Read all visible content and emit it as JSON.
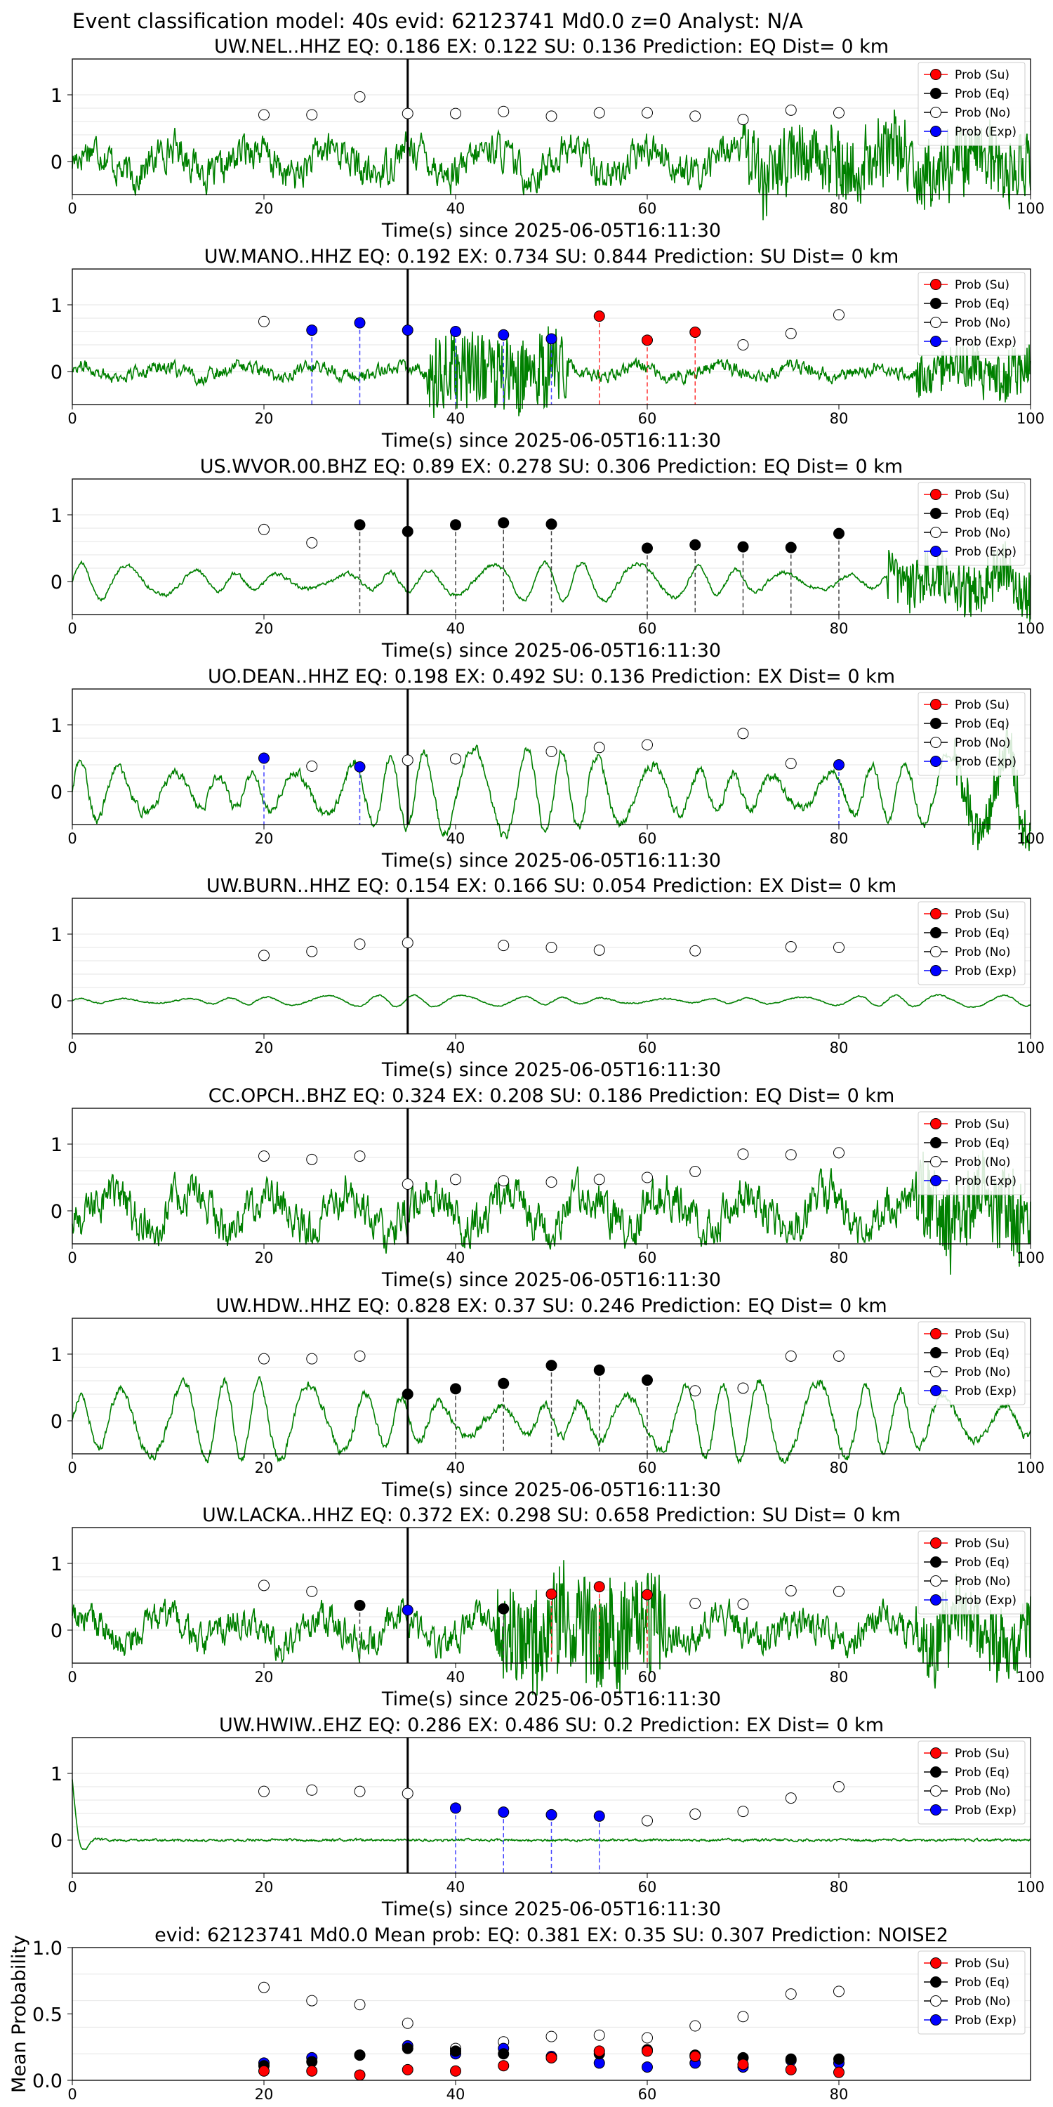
{
  "suptitle": "Event classification model: 40s evid: 62123741 Md0.0 z=0 Analyst: N/A",
  "xlabel": "Time(s) since 2025-06-05T16:11:30",
  "legend": [
    "Prob (Su)",
    "Prob (Eq)",
    "Prob (No)",
    "Prob (Exp)"
  ],
  "colors": {
    "su": "#ff0000",
    "eq": "#000000",
    "no": "#ffffff",
    "exp": "#0000ff",
    "trace": "#008000"
  },
  "chart_data": [
    {
      "type": "line",
      "station": "UW.NEL..HHZ",
      "title": "UW.NEL..HHZ   EQ: 0.186  EX: 0.122  SU: 0.136   Prediction: EQ    Dist= 0 km",
      "xlim": [
        0,
        100
      ],
      "yticks": [
        0,
        1
      ],
      "xticks": [
        0,
        20,
        40,
        60,
        80,
        100
      ],
      "grid": true,
      "vline": 35,
      "legend_position": "top-right",
      "trace": {
        "style": "noise",
        "amplitude": 0.38,
        "freq_hz": 0.9,
        "spiky_after": 70,
        "spiky_amp": 0.45
      },
      "points": [
        {
          "t": 20,
          "p": 0.7,
          "cls": "no"
        },
        {
          "t": 25,
          "p": 0.7,
          "cls": "no"
        },
        {
          "t": 30,
          "p": 0.97,
          "cls": "no"
        },
        {
          "t": 35,
          "p": 0.72,
          "cls": "no"
        },
        {
          "t": 40,
          "p": 0.72,
          "cls": "no"
        },
        {
          "t": 45,
          "p": 0.75,
          "cls": "no"
        },
        {
          "t": 50,
          "p": 0.68,
          "cls": "no"
        },
        {
          "t": 55,
          "p": 0.73,
          "cls": "no"
        },
        {
          "t": 60,
          "p": 0.73,
          "cls": "no"
        },
        {
          "t": 65,
          "p": 0.68,
          "cls": "no"
        },
        {
          "t": 70,
          "p": 0.63,
          "cls": "no"
        },
        {
          "t": 75,
          "p": 0.77,
          "cls": "no"
        },
        {
          "t": 80,
          "p": 0.73,
          "cls": "no"
        }
      ]
    },
    {
      "type": "line",
      "station": "UW.MANO..HHZ",
      "title": "UW.MANO..HHZ   EQ: 0.192  EX: 0.734  SU: 0.844   Prediction: SU    Dist= 0 km",
      "xlim": [
        0,
        100
      ],
      "yticks": [
        0,
        1
      ],
      "xticks": [
        0,
        20,
        40,
        60,
        80,
        100
      ],
      "grid": true,
      "vline": 35,
      "legend_position": "top-right",
      "trace": {
        "style": "burst",
        "amplitude": 0.15,
        "freq_hz": 0.6,
        "burst_start": 37,
        "burst_end": 52,
        "burst_amp": 0.6,
        "spiky_after": 88,
        "spiky_amp": 0.35
      },
      "points": [
        {
          "t": 20,
          "p": 0.75,
          "cls": "no"
        },
        {
          "t": 25,
          "p": 0.62,
          "cls": "exp"
        },
        {
          "t": 30,
          "p": 0.73,
          "cls": "exp"
        },
        {
          "t": 35,
          "p": 0.62,
          "cls": "exp"
        },
        {
          "t": 40,
          "p": 0.6,
          "cls": "exp"
        },
        {
          "t": 45,
          "p": 0.55,
          "cls": "exp"
        },
        {
          "t": 50,
          "p": 0.49,
          "cls": "exp"
        },
        {
          "t": 55,
          "p": 0.83,
          "cls": "su"
        },
        {
          "t": 60,
          "p": 0.47,
          "cls": "su"
        },
        {
          "t": 65,
          "p": 0.59,
          "cls": "su"
        },
        {
          "t": 70,
          "p": 0.4,
          "cls": "no"
        },
        {
          "t": 75,
          "p": 0.57,
          "cls": "no"
        },
        {
          "t": 80,
          "p": 0.85,
          "cls": "no"
        }
      ]
    },
    {
      "type": "line",
      "station": "US.WVOR.00.BHZ",
      "title": "US.WVOR.00.BHZ   EQ: 0.89  EX: 0.278  SU: 0.306   Prediction: EQ    Dist= 0 km",
      "xlim": [
        0,
        100
      ],
      "yticks": [
        0,
        1
      ],
      "xticks": [
        0,
        20,
        40,
        60,
        80,
        100
      ],
      "grid": true,
      "vline": 35,
      "legend_position": "top-right",
      "trace": {
        "style": "wave",
        "amplitude": 0.26,
        "freq_hz": 0.19,
        "spiky_after": 85,
        "spiky_amp": 0.4
      },
      "points": [
        {
          "t": 20,
          "p": 0.78,
          "cls": "no"
        },
        {
          "t": 25,
          "p": 0.58,
          "cls": "no"
        },
        {
          "t": 30,
          "p": 0.85,
          "cls": "eq"
        },
        {
          "t": 35,
          "p": 0.75,
          "cls": "eq"
        },
        {
          "t": 40,
          "p": 0.85,
          "cls": "eq"
        },
        {
          "t": 45,
          "p": 0.88,
          "cls": "eq"
        },
        {
          "t": 50,
          "p": 0.86,
          "cls": "eq"
        },
        {
          "t": 60,
          "p": 0.5,
          "cls": "eq"
        },
        {
          "t": 65,
          "p": 0.55,
          "cls": "eq"
        },
        {
          "t": 70,
          "p": 0.52,
          "cls": "eq"
        },
        {
          "t": 75,
          "p": 0.51,
          "cls": "eq"
        },
        {
          "t": 80,
          "p": 0.72,
          "cls": "eq"
        }
      ]
    },
    {
      "type": "line",
      "station": "UO.DEAN..HHZ",
      "title": "UO.DEAN..HHZ   EQ: 0.198  EX: 0.492  SU: 0.136   Prediction: EX    Dist= 0 km",
      "xlim": [
        0,
        100
      ],
      "yticks": [
        0,
        1
      ],
      "xticks": [
        0,
        20,
        40,
        60,
        80,
        100
      ],
      "grid": true,
      "vline": 35,
      "legend_position": "top-right",
      "trace": {
        "style": "wave",
        "amplitude": 0.6,
        "freq_hz": 0.22,
        "spiky_after": 92,
        "spiky_amp": 0.35
      },
      "points": [
        {
          "t": 20,
          "p": 0.5,
          "cls": "exp"
        },
        {
          "t": 25,
          "p": 0.38,
          "cls": "no"
        },
        {
          "t": 30,
          "p": 0.37,
          "cls": "exp"
        },
        {
          "t": 35,
          "p": 0.47,
          "cls": "no"
        },
        {
          "t": 40,
          "p": 0.49,
          "cls": "no"
        },
        {
          "t": 50,
          "p": 0.6,
          "cls": "no"
        },
        {
          "t": 55,
          "p": 0.66,
          "cls": "no"
        },
        {
          "t": 60,
          "p": 0.7,
          "cls": "no"
        },
        {
          "t": 70,
          "p": 0.87,
          "cls": "no"
        },
        {
          "t": 75,
          "p": 0.42,
          "cls": "no"
        },
        {
          "t": 80,
          "p": 0.4,
          "cls": "exp"
        }
      ]
    },
    {
      "type": "line",
      "station": "UW.BURN..HHZ",
      "title": "UW.BURN..HHZ   EQ: 0.154  EX: 0.166  SU: 0.054   Prediction: EX    Dist= 0 km",
      "xlim": [
        0,
        100
      ],
      "yticks": [
        0,
        1
      ],
      "xticks": [
        0,
        20,
        40,
        60,
        80,
        100
      ],
      "grid": true,
      "vline": 35,
      "legend_position": "top-right",
      "trace": {
        "style": "wave",
        "amplitude": 0.08,
        "freq_hz": 0.2,
        "spiky_after": 101,
        "spiky_amp": 0.0
      },
      "points": [
        {
          "t": 20,
          "p": 0.68,
          "cls": "no"
        },
        {
          "t": 25,
          "p": 0.74,
          "cls": "no"
        },
        {
          "t": 30,
          "p": 0.85,
          "cls": "no"
        },
        {
          "t": 35,
          "p": 0.87,
          "cls": "no"
        },
        {
          "t": 45,
          "p": 0.83,
          "cls": "no"
        },
        {
          "t": 50,
          "p": 0.8,
          "cls": "no"
        },
        {
          "t": 55,
          "p": 0.76,
          "cls": "no"
        },
        {
          "t": 65,
          "p": 0.75,
          "cls": "no"
        },
        {
          "t": 75,
          "p": 0.81,
          "cls": "no"
        },
        {
          "t": 80,
          "p": 0.8,
          "cls": "no"
        }
      ]
    },
    {
      "type": "line",
      "station": "CC.OPCH..BHZ",
      "title": "CC.OPCH..BHZ   EQ: 0.324  EX: 0.208  SU: 0.186   Prediction: EQ    Dist= 0 km",
      "xlim": [
        0,
        100
      ],
      "yticks": [
        0,
        1
      ],
      "xticks": [
        0,
        20,
        40,
        60,
        80,
        100
      ],
      "grid": true,
      "vline": 35,
      "legend_position": "top-right",
      "trace": {
        "style": "noise",
        "amplitude": 0.45,
        "freq_hz": 0.5,
        "spiky_after": 88,
        "spiky_amp": 0.55
      },
      "points": [
        {
          "t": 20,
          "p": 0.82,
          "cls": "no"
        },
        {
          "t": 25,
          "p": 0.77,
          "cls": "no"
        },
        {
          "t": 30,
          "p": 0.82,
          "cls": "no"
        },
        {
          "t": 35,
          "p": 0.4,
          "cls": "no"
        },
        {
          "t": 40,
          "p": 0.47,
          "cls": "no"
        },
        {
          "t": 45,
          "p": 0.45,
          "cls": "no"
        },
        {
          "t": 50,
          "p": 0.43,
          "cls": "no"
        },
        {
          "t": 55,
          "p": 0.47,
          "cls": "no"
        },
        {
          "t": 60,
          "p": 0.5,
          "cls": "no"
        },
        {
          "t": 65,
          "p": 0.59,
          "cls": "no"
        },
        {
          "t": 70,
          "p": 0.85,
          "cls": "no"
        },
        {
          "t": 75,
          "p": 0.84,
          "cls": "no"
        },
        {
          "t": 80,
          "p": 0.87,
          "cls": "no"
        }
      ]
    },
    {
      "type": "line",
      "station": "UW.HDW..HHZ",
      "title": "UW.HDW..HHZ   EQ: 0.828  EX: 0.37  SU: 0.246   Prediction: EQ    Dist= 0 km",
      "xlim": [
        0,
        100
      ],
      "yticks": [
        0,
        1
      ],
      "xticks": [
        0,
        20,
        40,
        60,
        80,
        100
      ],
      "grid": true,
      "vline": 35,
      "legend_position": "top-right",
      "trace": {
        "style": "wave",
        "amplitude": 0.55,
        "freq_hz": 0.21,
        "spiky_after": 101,
        "spiky_amp": 0.0
      },
      "points": [
        {
          "t": 20,
          "p": 0.93,
          "cls": "no"
        },
        {
          "t": 25,
          "p": 0.93,
          "cls": "no"
        },
        {
          "t": 30,
          "p": 0.97,
          "cls": "no"
        },
        {
          "t": 35,
          "p": 0.4,
          "cls": "eq"
        },
        {
          "t": 40,
          "p": 0.48,
          "cls": "eq"
        },
        {
          "t": 45,
          "p": 0.56,
          "cls": "eq"
        },
        {
          "t": 50,
          "p": 0.83,
          "cls": "eq"
        },
        {
          "t": 55,
          "p": 0.76,
          "cls": "eq"
        },
        {
          "t": 60,
          "p": 0.61,
          "cls": "eq"
        },
        {
          "t": 65,
          "p": 0.45,
          "cls": "no"
        },
        {
          "t": 70,
          "p": 0.49,
          "cls": "no"
        },
        {
          "t": 75,
          "p": 0.97,
          "cls": "no"
        },
        {
          "t": 80,
          "p": 0.97,
          "cls": "no"
        }
      ]
    },
    {
      "type": "line",
      "station": "UW.LACKA..HHZ",
      "title": "UW.LACKA..HHZ   EQ: 0.372  EX: 0.298  SU: 0.658   Prediction: SU    Dist= 0 km",
      "xlim": [
        0,
        100
      ],
      "yticks": [
        0,
        1
      ],
      "xticks": [
        0,
        20,
        40,
        60,
        80,
        100
      ],
      "grid": true,
      "vline": 35,
      "legend_position": "top-right",
      "trace": {
        "style": "burst",
        "amplitude": 0.35,
        "freq_hz": 0.8,
        "burst_start": 44,
        "burst_end": 62,
        "burst_amp": 0.75,
        "spiky_after": 88,
        "spiky_amp": 0.5
      },
      "points": [
        {
          "t": 20,
          "p": 0.67,
          "cls": "no"
        },
        {
          "t": 25,
          "p": 0.58,
          "cls": "no"
        },
        {
          "t": 30,
          "p": 0.37,
          "cls": "eq"
        },
        {
          "t": 35,
          "p": 0.3,
          "cls": "exp"
        },
        {
          "t": 45,
          "p": 0.32,
          "cls": "eq"
        },
        {
          "t": 50,
          "p": 0.54,
          "cls": "su"
        },
        {
          "t": 55,
          "p": 0.65,
          "cls": "su"
        },
        {
          "t": 60,
          "p": 0.53,
          "cls": "su"
        },
        {
          "t": 65,
          "p": 0.4,
          "cls": "no"
        },
        {
          "t": 70,
          "p": 0.39,
          "cls": "no"
        },
        {
          "t": 75,
          "p": 0.59,
          "cls": "no"
        },
        {
          "t": 80,
          "p": 0.58,
          "cls": "no"
        }
      ]
    },
    {
      "type": "line",
      "station": "UW.HWIW..EHZ",
      "title": "UW.HWIW..EHZ   EQ: 0.286  EX: 0.486  SU: 0.2   Prediction: EX    Dist= 0 km",
      "xlim": [
        0,
        100
      ],
      "yticks": [
        0,
        1
      ],
      "xticks": [
        0,
        20,
        40,
        60,
        80,
        100
      ],
      "grid": true,
      "vline": 35,
      "legend_position": "top-right",
      "trace": {
        "style": "flat",
        "amplitude": 0.03,
        "freq_hz": 0.9,
        "initial_spike": 0.9,
        "spiky_after": 101,
        "spiky_amp": 0.0
      },
      "points": [
        {
          "t": 20,
          "p": 0.73,
          "cls": "no"
        },
        {
          "t": 25,
          "p": 0.75,
          "cls": "no"
        },
        {
          "t": 30,
          "p": 0.73,
          "cls": "no"
        },
        {
          "t": 35,
          "p": 0.7,
          "cls": "no"
        },
        {
          "t": 40,
          "p": 0.48,
          "cls": "exp"
        },
        {
          "t": 45,
          "p": 0.42,
          "cls": "exp"
        },
        {
          "t": 50,
          "p": 0.38,
          "cls": "exp"
        },
        {
          "t": 55,
          "p": 0.36,
          "cls": "exp"
        },
        {
          "t": 60,
          "p": 0.29,
          "cls": "no"
        },
        {
          "t": 65,
          "p": 0.39,
          "cls": "no"
        },
        {
          "t": 70,
          "p": 0.43,
          "cls": "no"
        },
        {
          "t": 75,
          "p": 0.63,
          "cls": "no"
        },
        {
          "t": 80,
          "p": 0.8,
          "cls": "no"
        }
      ]
    },
    {
      "type": "scatter",
      "station": "mean",
      "title": "evid: 62123741  Md0.0   Mean prob:    EQ: 0.381  EX: 0.35  SU: 0.307   Prediction: NOISE2",
      "ylabel": "Mean Probability",
      "xlim": [
        0,
        100
      ],
      "ylim": [
        0,
        1
      ],
      "yticks": [
        "0.0",
        "0.5",
        "1.0"
      ],
      "xticks": [
        0,
        20,
        40,
        60,
        80
      ],
      "grid": true,
      "legend_position": "top-right",
      "t": [
        20,
        25,
        30,
        35,
        40,
        45,
        50,
        55,
        60,
        65,
        70,
        75,
        80
      ],
      "series": [
        {
          "name": "Prob (No)",
          "cls": "no",
          "values": [
            0.7,
            0.6,
            0.57,
            0.43,
            0.24,
            0.29,
            0.33,
            0.34,
            0.32,
            0.41,
            0.48,
            0.65,
            0.67
          ]
        },
        {
          "name": "Prob (Exp)",
          "cls": "exp",
          "values": [
            0.13,
            0.17,
            0.19,
            0.26,
            0.2,
            0.24,
            0.18,
            0.13,
            0.1,
            0.13,
            0.1,
            0.15,
            0.13
          ]
        },
        {
          "name": "Prob (Eq)",
          "cls": "eq",
          "values": [
            0.11,
            0.14,
            0.19,
            0.24,
            0.22,
            0.2,
            0.17,
            0.2,
            0.23,
            0.19,
            0.17,
            0.16,
            0.16
          ]
        },
        {
          "name": "Prob (Su)",
          "cls": "su",
          "values": [
            0.07,
            0.07,
            0.04,
            0.08,
            0.07,
            0.11,
            0.17,
            0.22,
            0.22,
            0.18,
            0.12,
            0.08,
            0.06
          ]
        }
      ]
    }
  ]
}
